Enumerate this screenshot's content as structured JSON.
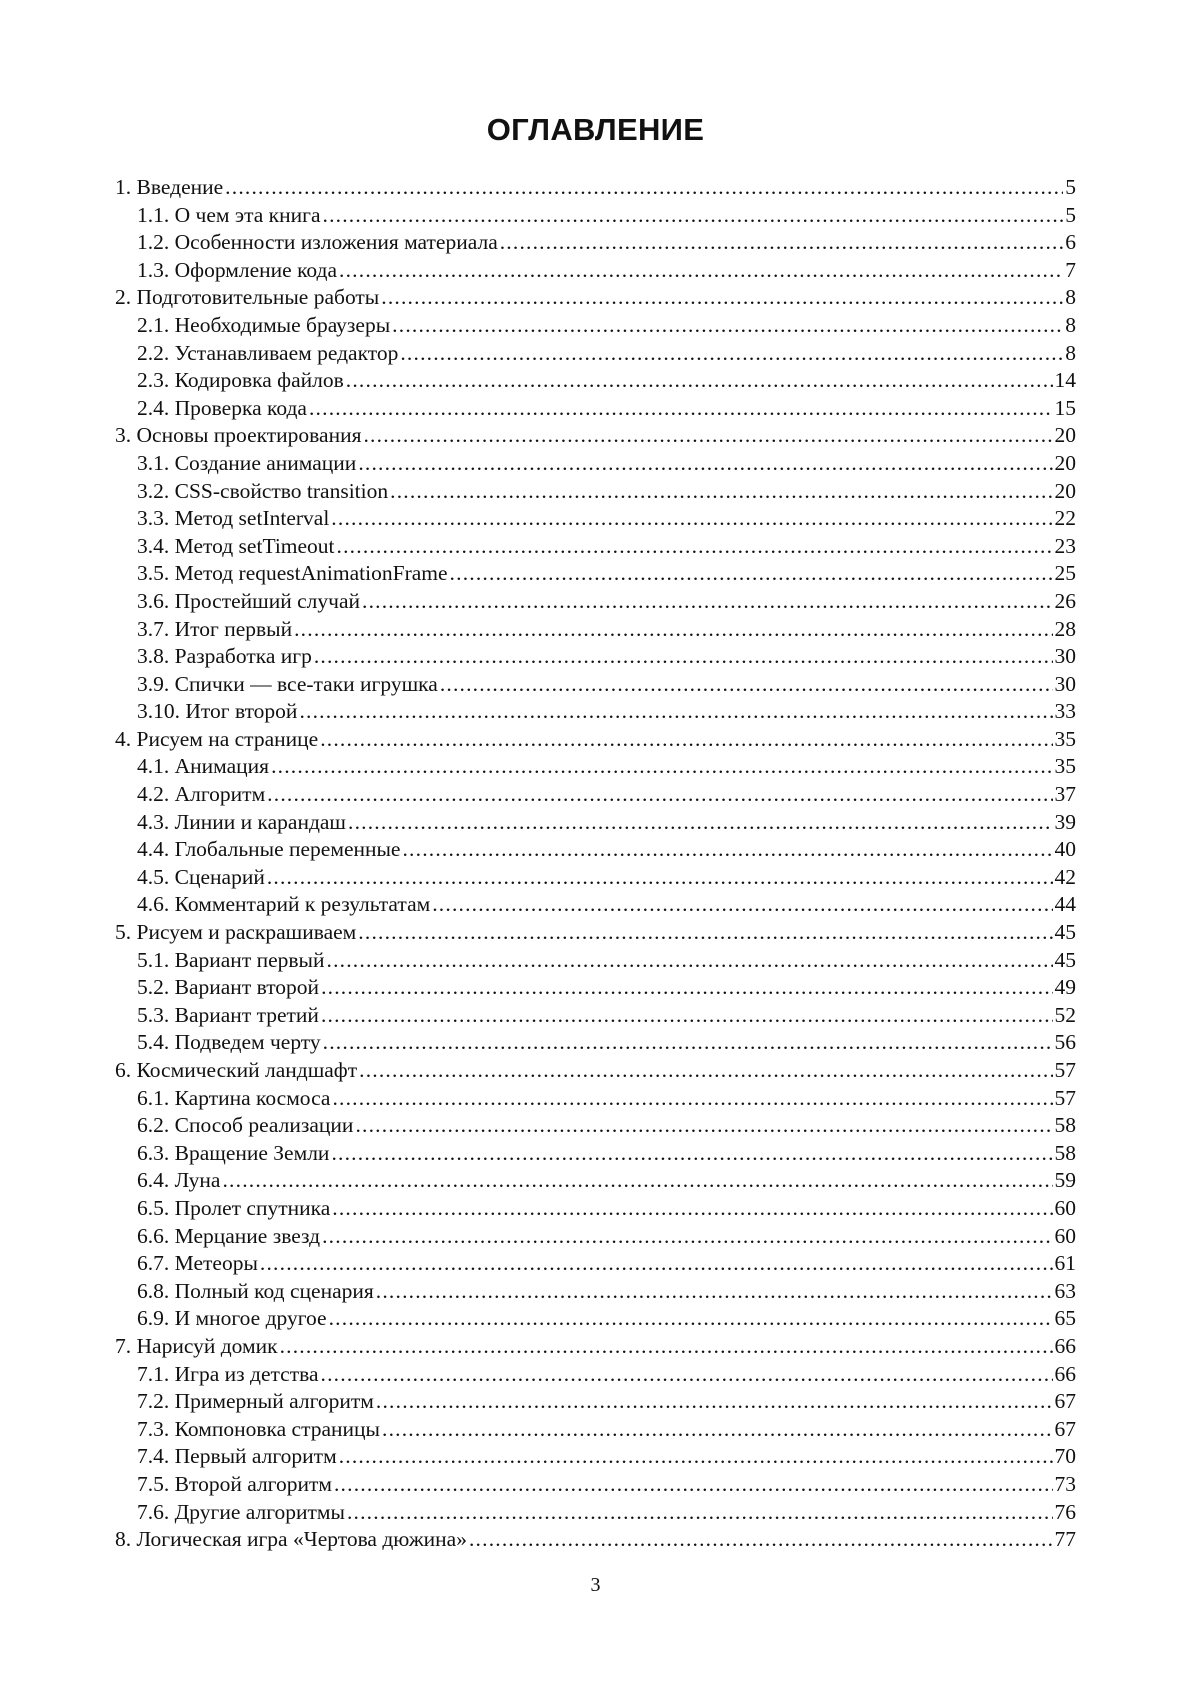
{
  "title": "ОГЛАВЛЕНИЕ",
  "entries": [
    {
      "label": "1. Введение",
      "page": "5",
      "level": 1
    },
    {
      "label": "1.1. О чем эта книга",
      "page": "5",
      "level": 2
    },
    {
      "label": "1.2. Особенности изложения материала",
      "page": "6",
      "level": 2
    },
    {
      "label": "1.3. Оформление кода",
      "page": "7",
      "level": 2
    },
    {
      "label": "2. Подготовительные работы",
      "page": "8",
      "level": 1
    },
    {
      "label": "2.1. Необходимые браузеры",
      "page": "8",
      "level": 2
    },
    {
      "label": "2.2. Устанавливаем редактор",
      "page": "8",
      "level": 2
    },
    {
      "label": "2.3. Кодировка файлов",
      "page": "14",
      "level": 2
    },
    {
      "label": "2.4. Проверка кода",
      "page": "15",
      "level": 2
    },
    {
      "label": "3. Основы проектирования",
      "page": "20",
      "level": 1
    },
    {
      "label": "3.1. Создание анимации",
      "page": "20",
      "level": 2
    },
    {
      "label": "3.2. CSS-свойство transition",
      "page": "20",
      "level": 2
    },
    {
      "label": "3.3. Метод setInterval",
      "page": "22",
      "level": 2
    },
    {
      "label": "3.4. Метод setTimeout",
      "page": "23",
      "level": 2
    },
    {
      "label": "3.5. Метод requestAnimationFrame",
      "page": "25",
      "level": 2
    },
    {
      "label": "3.6. Простейший случай",
      "page": "26",
      "level": 2
    },
    {
      "label": "3.7. Итог первый",
      "page": "28",
      "level": 2
    },
    {
      "label": "3.8. Разработка игр",
      "page": "30",
      "level": 2
    },
    {
      "label": "3.9. Спички — все-таки игрушка",
      "page": "30",
      "level": 2
    },
    {
      "label": "3.10. Итог второй",
      "page": "33",
      "level": 2
    },
    {
      "label": "4. Рисуем на странице",
      "page": "35",
      "level": 1
    },
    {
      "label": "4.1. Анимация",
      "page": "35",
      "level": 2
    },
    {
      "label": "4.2. Алгоритм",
      "page": "37",
      "level": 2
    },
    {
      "label": "4.3. Линии и карандаш",
      "page": "39",
      "level": 2
    },
    {
      "label": "4.4. Глобальные переменные",
      "page": "40",
      "level": 2
    },
    {
      "label": "4.5. Сценарий",
      "page": "42",
      "level": 2
    },
    {
      "label": "4.6. Комментарий к результатам",
      "page": "44",
      "level": 2
    },
    {
      "label": "5. Рисуем и раскрашиваем",
      "page": "45",
      "level": 1
    },
    {
      "label": "5.1. Вариант первый",
      "page": "45",
      "level": 2
    },
    {
      "label": "5.2. Вариант второй",
      "page": "49",
      "level": 2
    },
    {
      "label": "5.3. Вариант третий",
      "page": "52",
      "level": 2
    },
    {
      "label": "5.4. Подведем черту",
      "page": "56",
      "level": 2
    },
    {
      "label": "6. Космический ландшафт",
      "page": "57",
      "level": 1
    },
    {
      "label": "6.1. Картина космоса",
      "page": "57",
      "level": 2
    },
    {
      "label": "6.2. Способ реализации",
      "page": "58",
      "level": 2
    },
    {
      "label": "6.3. Вращение Земли",
      "page": "58",
      "level": 2
    },
    {
      "label": "6.4. Луна",
      "page": "59",
      "level": 2
    },
    {
      "label": "6.5. Пролет спутника",
      "page": "60",
      "level": 2
    },
    {
      "label": "6.6. Мерцание звезд",
      "page": "60",
      "level": 2
    },
    {
      "label": "6.7. Метеоры",
      "page": "61",
      "level": 2
    },
    {
      "label": "6.8. Полный код сценария",
      "page": "63",
      "level": 2
    },
    {
      "label": "6.9. И многое другое",
      "page": "65",
      "level": 2
    },
    {
      "label": "7. Нарисуй домик",
      "page": "66",
      "level": 1
    },
    {
      "label": "7.1. Игра из детства",
      "page": "66",
      "level": 2
    },
    {
      "label": "7.2. Примерный алгоритм",
      "page": "67",
      "level": 2
    },
    {
      "label": "7.3. Компоновка страницы",
      "page": "67",
      "level": 2
    },
    {
      "label": "7.4. Первый алгоритм",
      "page": "70",
      "level": 2
    },
    {
      "label": "7.5. Второй алгоритм",
      "page": "73",
      "level": 2
    },
    {
      "label": "7.6. Другие алгоритмы",
      "page": "76",
      "level": 2
    },
    {
      "label": "8. Логическая игра «Чертова дюжина»",
      "page": "77",
      "level": 1
    }
  ],
  "page_number": "3"
}
